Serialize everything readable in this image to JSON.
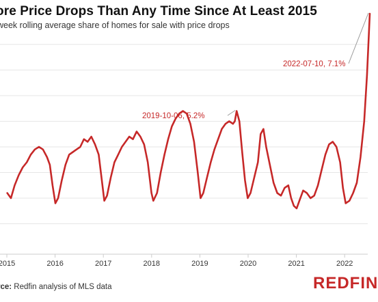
{
  "title": "ore Price Drops Than Any Time Since At Least 2015",
  "subtitle": "week rolling average share of homes for sale with price drops",
  "source_prefix": "rce:",
  "source_text": " Redfin analysis of MLS data",
  "logo": "REDFIN",
  "colors": {
    "line": "#c62828",
    "grid": "#e6e6e6",
    "axis": "#cccccc",
    "accent": "#c62828"
  },
  "chart_data": {
    "type": "line",
    "title": "ore Price Drops Than Any Time Since At Least 2015",
    "subtitle": "week rolling average share of homes for sale with price drops",
    "x_ticks": [
      "2015",
      "2016",
      "2017",
      "2018",
      "2019",
      "2020",
      "2021",
      "2022"
    ],
    "ylim": [
      2.6,
      7.6
    ],
    "xlim": [
      "2015-01-01",
      "2022-08-01"
    ],
    "grid": true,
    "series": [
      {
        "points": [
          [
            "2015-01-04",
            3.6
          ],
          [
            "2015-02-01",
            3.5
          ],
          [
            "2015-03-01",
            3.75
          ],
          [
            "2015-04-01",
            3.95
          ],
          [
            "2015-05-01",
            4.1
          ],
          [
            "2015-06-01",
            4.2
          ],
          [
            "2015-07-01",
            4.35
          ],
          [
            "2015-08-01",
            4.45
          ],
          [
            "2015-09-01",
            4.5
          ],
          [
            "2015-10-01",
            4.45
          ],
          [
            "2015-11-01",
            4.3
          ],
          [
            "2015-11-22",
            4.15
          ],
          [
            "2015-12-13",
            3.75
          ],
          [
            "2016-01-03",
            3.4
          ],
          [
            "2016-01-24",
            3.5
          ],
          [
            "2016-02-21",
            3.85
          ],
          [
            "2016-03-20",
            4.15
          ],
          [
            "2016-04-17",
            4.35
          ],
          [
            "2016-05-15",
            4.4
          ],
          [
            "2016-06-12",
            4.45
          ],
          [
            "2016-07-10",
            4.5
          ],
          [
            "2016-08-07",
            4.65
          ],
          [
            "2016-09-04",
            4.6
          ],
          [
            "2016-10-02",
            4.7
          ],
          [
            "2016-10-30",
            4.55
          ],
          [
            "2016-11-27",
            4.35
          ],
          [
            "2016-12-18",
            3.9
          ],
          [
            "2017-01-08",
            3.45
          ],
          [
            "2017-01-29",
            3.55
          ],
          [
            "2017-02-26",
            3.9
          ],
          [
            "2017-03-26",
            4.2
          ],
          [
            "2017-04-23",
            4.35
          ],
          [
            "2017-05-21",
            4.5
          ],
          [
            "2017-06-18",
            4.6
          ],
          [
            "2017-07-16",
            4.7
          ],
          [
            "2017-08-13",
            4.65
          ],
          [
            "2017-09-10",
            4.8
          ],
          [
            "2017-10-08",
            4.7
          ],
          [
            "2017-11-05",
            4.55
          ],
          [
            "2017-12-03",
            4.2
          ],
          [
            "2017-12-31",
            3.6
          ],
          [
            "2018-01-14",
            3.45
          ],
          [
            "2018-02-11",
            3.6
          ],
          [
            "2018-03-11",
            4.0
          ],
          [
            "2018-04-08",
            4.35
          ],
          [
            "2018-05-06",
            4.65
          ],
          [
            "2018-06-03",
            4.9
          ],
          [
            "2018-07-01",
            5.05
          ],
          [
            "2018-07-29",
            5.15
          ],
          [
            "2018-08-26",
            5.2
          ],
          [
            "2018-09-23",
            5.15
          ],
          [
            "2018-10-21",
            4.95
          ],
          [
            "2018-11-18",
            4.6
          ],
          [
            "2018-12-16",
            4.0
          ],
          [
            "2019-01-06",
            3.5
          ],
          [
            "2019-01-27",
            3.6
          ],
          [
            "2019-02-24",
            3.9
          ],
          [
            "2019-03-24",
            4.2
          ],
          [
            "2019-04-21",
            4.45
          ],
          [
            "2019-05-19",
            4.65
          ],
          [
            "2019-06-16",
            4.85
          ],
          [
            "2019-07-14",
            4.95
          ],
          [
            "2019-08-11",
            5.0
          ],
          [
            "2019-09-08",
            4.95
          ],
          [
            "2019-09-22",
            5.0
          ],
          [
            "2019-10-06",
            5.2
          ],
          [
            "2019-10-27",
            5.0
          ],
          [
            "2019-11-17",
            4.4
          ],
          [
            "2019-12-08",
            3.85
          ],
          [
            "2019-12-29",
            3.5
          ],
          [
            "2020-01-19",
            3.6
          ],
          [
            "2020-02-16",
            3.9
          ],
          [
            "2020-03-15",
            4.2
          ],
          [
            "2020-04-05",
            4.75
          ],
          [
            "2020-04-26",
            4.85
          ],
          [
            "2020-05-17",
            4.5
          ],
          [
            "2020-06-14",
            4.15
          ],
          [
            "2020-07-12",
            3.8
          ],
          [
            "2020-08-09",
            3.6
          ],
          [
            "2020-09-06",
            3.55
          ],
          [
            "2020-10-04",
            3.7
          ],
          [
            "2020-11-01",
            3.75
          ],
          [
            "2020-11-22",
            3.5
          ],
          [
            "2020-12-13",
            3.35
          ],
          [
            "2021-01-03",
            3.3
          ],
          [
            "2021-01-24",
            3.45
          ],
          [
            "2021-02-21",
            3.65
          ],
          [
            "2021-03-21",
            3.6
          ],
          [
            "2021-04-18",
            3.5
          ],
          [
            "2021-05-16",
            3.55
          ],
          [
            "2021-06-13",
            3.75
          ],
          [
            "2021-07-11",
            4.05
          ],
          [
            "2021-08-08",
            4.35
          ],
          [
            "2021-09-05",
            4.55
          ],
          [
            "2021-10-03",
            4.6
          ],
          [
            "2021-10-31",
            4.5
          ],
          [
            "2021-11-28",
            4.2
          ],
          [
            "2021-12-19",
            3.7
          ],
          [
            "2022-01-09",
            3.4
          ],
          [
            "2022-02-06",
            3.45
          ],
          [
            "2022-03-06",
            3.6
          ],
          [
            "2022-04-03",
            3.8
          ],
          [
            "2022-05-01",
            4.3
          ],
          [
            "2022-05-29",
            5.0
          ],
          [
            "2022-06-19",
            5.9
          ],
          [
            "2022-07-10",
            7.1
          ]
        ]
      }
    ],
    "annotations": [
      {
        "date": "2019-10-06",
        "label": "2019-10-06, 5.2%"
      },
      {
        "date": "2022-07-10",
        "label": "2022-07-10, 7.1%"
      }
    ]
  }
}
